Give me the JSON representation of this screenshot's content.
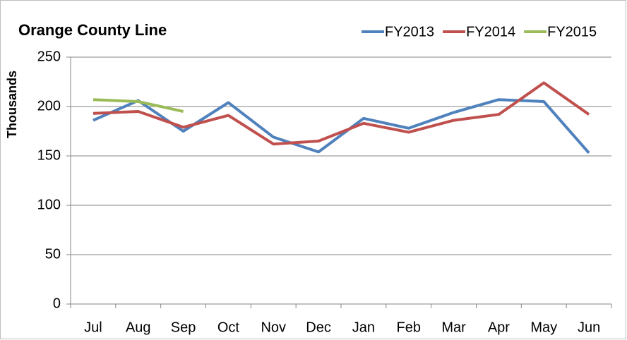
{
  "chart_data": {
    "type": "line",
    "title": "Orange County Line",
    "y_label": "Thousands",
    "categories": [
      "Jul",
      "Aug",
      "Sep",
      "Oct",
      "Nov",
      "Dec",
      "Jan",
      "Feb",
      "Mar",
      "Apr",
      "May",
      "Jun"
    ],
    "series": [
      {
        "name": "FY2013",
        "color": "#4f81bd",
        "values": [
          186,
          206,
          175,
          204,
          169,
          154,
          188,
          178,
          194,
          207,
          205,
          153
        ]
      },
      {
        "name": "FY2014",
        "color": "#c0504d",
        "values": [
          193,
          195,
          179,
          191,
          162,
          165,
          183,
          174,
          186,
          192,
          224,
          192
        ]
      },
      {
        "name": "FY2015",
        "color": "#9bbb59",
        "values": [
          207,
          205,
          195,
          null,
          null,
          null,
          null,
          null,
          null,
          null,
          null,
          null
        ]
      }
    ],
    "ylim": [
      0,
      250
    ],
    "yticks": [
      0,
      50,
      100,
      150,
      200,
      250
    ],
    "grid": true,
    "legend": "top-right"
  }
}
